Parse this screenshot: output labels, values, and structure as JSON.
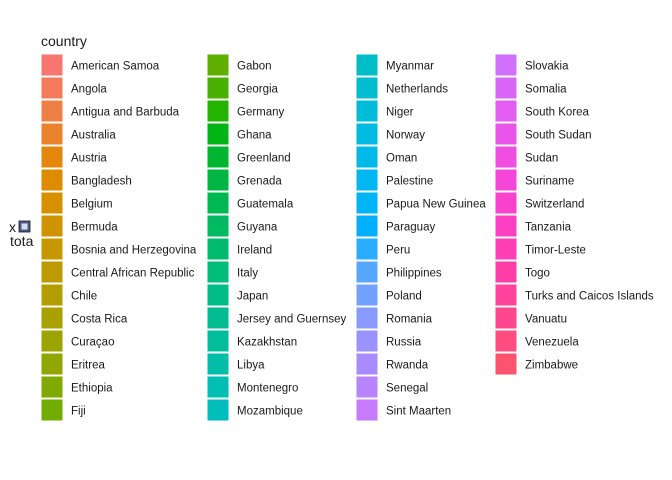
{
  "chart_data": {
    "type": "bar",
    "legend": {
      "title": "country",
      "position": "left",
      "columns": 4,
      "entries": [
        {
          "label": "American Samoa",
          "color": "#F8766D"
        },
        {
          "label": "Angola",
          "color": "#F47A5B"
        },
        {
          "label": "Antigua and Barbuda",
          "color": "#F07F46"
        },
        {
          "label": "Australia",
          "color": "#EB832D"
        },
        {
          "label": "Austria",
          "color": "#E5870C"
        },
        {
          "label": "Bangladesh",
          "color": "#DF8B00"
        },
        {
          "label": "Belgium",
          "color": "#D88F00"
        },
        {
          "label": "Bermuda",
          "color": "#D09300"
        },
        {
          "label": "Bosnia and Herzegovina",
          "color": "#C79700"
        },
        {
          "label": "Central African Republic",
          "color": "#BD9B00"
        },
        {
          "label": "Chile",
          "color": "#B39E00"
        },
        {
          "label": "Costa Rica",
          "color": "#A8A100"
        },
        {
          "label": "Curaçao",
          "color": "#9CA400"
        },
        {
          "label": "Eritrea",
          "color": "#8FA700"
        },
        {
          "label": "Ethiopia",
          "color": "#81AA00"
        },
        {
          "label": "Fiji",
          "color": "#71AC00"
        },
        {
          "label": "Gabon",
          "color": "#5FAF00"
        },
        {
          "label": "Georgia",
          "color": "#48B100"
        },
        {
          "label": "Germany",
          "color": "#24B300"
        },
        {
          "label": "Ghana",
          "color": "#00B415"
        },
        {
          "label": "Greenland",
          "color": "#00B631"
        },
        {
          "label": "Grenada",
          "color": "#00B744"
        },
        {
          "label": "Guatemala",
          "color": "#00B853"
        },
        {
          "label": "Guyana",
          "color": "#00BA61"
        },
        {
          "label": "Ireland",
          "color": "#00BB6E"
        },
        {
          "label": "Italy",
          "color": "#00BC7A"
        },
        {
          "label": "Japan",
          "color": "#00BC86"
        },
        {
          "label": "Jersey and Guernsey",
          "color": "#00BD91"
        },
        {
          "label": "Kazakhstan",
          "color": "#00BE9C"
        },
        {
          "label": "Libya",
          "color": "#00BEA7"
        },
        {
          "label": "Montenegro",
          "color": "#00BEB1"
        },
        {
          "label": "Mozambique",
          "color": "#00BEBB"
        },
        {
          "label": "Myanmar",
          "color": "#00BEC5"
        },
        {
          "label": "Netherlands",
          "color": "#00BDCF"
        },
        {
          "label": "Niger",
          "color": "#00BCD8"
        },
        {
          "label": "Norway",
          "color": "#00BBE1"
        },
        {
          "label": "Oman",
          "color": "#00B9E9"
        },
        {
          "label": "Palestine",
          "color": "#00B7F1"
        },
        {
          "label": "Papua New Guinea",
          "color": "#00B4F8"
        },
        {
          "label": "Paraguay",
          "color": "#00B0FE"
        },
        {
          "label": "Peru",
          "color": "#2AACFF"
        },
        {
          "label": "Philippines",
          "color": "#57A7FF"
        },
        {
          "label": "Poland",
          "color": "#72A1FF"
        },
        {
          "label": "Romania",
          "color": "#889AFF"
        },
        {
          "label": "Russia",
          "color": "#9A93FF"
        },
        {
          "label": "Rwanda",
          "color": "#AA8BFF"
        },
        {
          "label": "Senegal",
          "color": "#B883FF"
        },
        {
          "label": "Sint Maarten",
          "color": "#C57AFF"
        },
        {
          "label": "Slovakia",
          "color": "#D070FD"
        },
        {
          "label": "Somalia",
          "color": "#DA66F7"
        },
        {
          "label": "South Korea",
          "color": "#E25DF1"
        },
        {
          "label": "South Sudan",
          "color": "#E955EA"
        },
        {
          "label": "Sudan",
          "color": "#EF4EE1"
        },
        {
          "label": "Suriname",
          "color": "#F447D8"
        },
        {
          "label": "Switzerland",
          "color": "#F842CD"
        },
        {
          "label": "Tanzania",
          "color": "#FB3FC2"
        },
        {
          "label": "Timor-Leste",
          "color": "#FD3EB5"
        },
        {
          "label": "Togo",
          "color": "#FE3FA8"
        },
        {
          "label": "Turks and Caicos Islands",
          "color": "#FF429B"
        },
        {
          "label": "Vanuatu",
          "color": "#FF478D"
        },
        {
          "label": "Venezuela",
          "color": "#FE4D7E"
        },
        {
          "label": "Zimbabwe",
          "color": "#FC536F"
        }
      ]
    },
    "axis_label_fragments": {
      "top": "x",
      "bottom": "tota"
    }
  }
}
